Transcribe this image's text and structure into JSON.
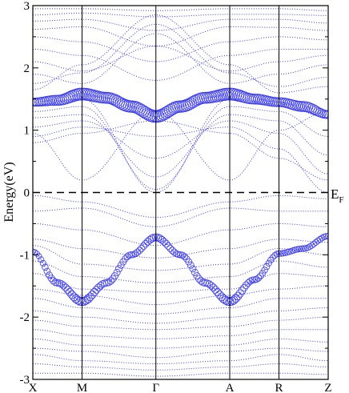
{
  "chart_data": {
    "type": "line",
    "title": "",
    "xlabel": "",
    "ylabel": "Energy(eV)",
    "ylim": [
      -3,
      3
    ],
    "xlim": [
      0,
      6
    ],
    "y_ticks": [
      -3,
      -2,
      -1,
      0,
      1,
      2,
      3
    ],
    "y_tick_labels": [
      "-3",
      "-2",
      "-1",
      "0",
      "1",
      "2",
      "3"
    ],
    "k_points": [
      {
        "label": "X",
        "x": 0
      },
      {
        "label": "M",
        "x": 1
      },
      {
        "label": "Γ",
        "x": 2.5
      },
      {
        "label": "A",
        "x": 4
      },
      {
        "label": "R",
        "x": 5
      },
      {
        "label": "Z",
        "x": 6
      }
    ],
    "fermi_level": {
      "energy": 0,
      "label": "E",
      "subscript": "F"
    },
    "colors": {
      "bands": "#3a3aee",
      "fermi": "#000000",
      "frame": "#000000"
    },
    "highlighted_bands": [
      {
        "name": "",
        "x": [
          0,
          0.5,
          1,
          1.5,
          2,
          2.5,
          3,
          3.5,
          4,
          4.5,
          5,
          5.5,
          6
        ],
        "y": [
          1.45,
          1.48,
          1.58,
          1.52,
          1.38,
          1.22,
          1.38,
          1.52,
          1.58,
          1.5,
          1.45,
          1.38,
          1.25
        ],
        "weight": [
          0.6,
          0.8,
          1.0,
          0.9,
          0.95,
          1.0,
          0.95,
          0.9,
          1.0,
          0.8,
          0.7,
          0.8,
          0.6
        ]
      },
      {
        "name": "",
        "x": [
          0,
          0.5,
          1,
          1.5,
          2,
          2.5,
          3,
          3.5,
          4,
          4.5,
          5,
          5.5,
          6
        ],
        "y": [
          -0.95,
          -1.45,
          -1.75,
          -1.45,
          -1.0,
          -0.72,
          -1.0,
          -1.45,
          -1.75,
          -1.4,
          -0.98,
          -0.9,
          -0.7
        ],
        "weight": [
          0.3,
          0.45,
          0.6,
          0.45,
          0.4,
          0.5,
          0.4,
          0.45,
          0.6,
          0.4,
          0.35,
          0.35,
          0.35
        ]
      }
    ],
    "bands": [
      {
        "x": [
          0,
          1,
          2.5,
          4,
          5,
          6
        ],
        "y": [
          2.95,
          2.95,
          2.92,
          2.95,
          2.95,
          2.92
        ]
      },
      {
        "x": [
          0,
          1,
          2.5,
          4,
          5,
          6
        ],
        "y": [
          2.85,
          2.88,
          2.82,
          2.86,
          2.86,
          2.84
        ]
      },
      {
        "x": [
          0,
          1,
          2.5,
          4,
          5,
          6
        ],
        "y": [
          2.75,
          2.78,
          2.6,
          2.78,
          2.78,
          2.72
        ]
      },
      {
        "x": [
          0,
          1,
          2.5,
          4,
          5,
          6
        ],
        "y": [
          2.62,
          2.66,
          2.35,
          2.66,
          2.65,
          2.6
        ]
      },
      {
        "x": [
          0,
          1,
          2.5,
          4,
          5,
          6
        ],
        "y": [
          2.5,
          2.42,
          2.1,
          2.42,
          2.5,
          2.45
        ]
      },
      {
        "x": [
          0,
          1,
          2.5,
          4,
          5,
          6
        ],
        "y": [
          2.3,
          2.2,
          1.8,
          2.2,
          2.3,
          2.3
        ]
      },
      {
        "x": [
          0,
          1,
          2.5,
          4,
          5,
          6
        ],
        "y": [
          2.1,
          1.95,
          2.35,
          1.95,
          2.1,
          2.2
        ]
      },
      {
        "x": [
          0,
          1,
          2.5,
          4,
          5,
          6
        ],
        "y": [
          1.9,
          1.75,
          2.55,
          1.75,
          1.9,
          2.05
        ]
      },
      {
        "x": [
          0,
          1,
          2.5,
          4,
          5,
          6
        ],
        "y": [
          1.75,
          1.92,
          2.7,
          1.92,
          1.7,
          1.85
        ]
      },
      {
        "x": [
          0,
          1,
          2.5,
          4,
          5,
          6
        ],
        "y": [
          1.65,
          2.05,
          2.85,
          2.05,
          1.6,
          1.7
        ]
      },
      {
        "x": [
          0,
          1,
          2.5,
          4,
          5,
          6
        ],
        "y": [
          1.4,
          1.5,
          0.0,
          1.5,
          1.42,
          1.2
        ]
      },
      {
        "x": [
          0,
          1,
          2.5,
          4,
          5,
          6
        ],
        "y": [
          1.3,
          1.38,
          0.05,
          1.38,
          1.3,
          0.9
        ]
      },
      {
        "x": [
          0,
          1,
          2.5,
          4,
          5,
          6
        ],
        "y": [
          1.2,
          1.25,
          0.25,
          1.25,
          1.15,
          0.6
        ]
      },
      {
        "x": [
          0,
          1,
          2.5,
          4,
          5,
          6
        ],
        "y": [
          1.05,
          1.15,
          0.55,
          1.15,
          0.95,
          0.3
        ]
      },
      {
        "x": [
          0,
          1,
          2.5,
          4,
          5,
          6
        ],
        "y": [
          0.9,
          1.05,
          0.9,
          1.05,
          0.7,
          0.0
        ]
      },
      {
        "x": [
          0,
          1,
          2.5,
          4,
          5,
          6
        ],
        "y": [
          0.8,
          0.95,
          1.15,
          0.95,
          0.55,
          0.2
        ]
      },
      {
        "x": [
          0,
          1,
          2.5,
          4,
          5,
          6
        ],
        "y": [
          0.95,
          0.2,
          1.3,
          0.2,
          1.0,
          1.3
        ]
      },
      {
        "x": [
          0,
          1,
          2.5,
          4,
          5,
          6
        ],
        "y": [
          -0.05,
          -0.15,
          -0.4,
          -0.15,
          -0.05,
          -0.1
        ]
      },
      {
        "x": [
          0,
          1,
          2.5,
          4,
          5,
          6
        ],
        "y": [
          -0.3,
          -0.25,
          -0.55,
          -0.25,
          -0.3,
          -0.3
        ]
      },
      {
        "x": [
          0,
          1,
          2.5,
          4,
          5,
          6
        ],
        "y": [
          -0.5,
          -0.6,
          -0.85,
          -0.6,
          -0.5,
          -0.55
        ]
      },
      {
        "x": [
          0,
          1,
          2.5,
          4,
          5,
          6
        ],
        "y": [
          -0.75,
          -0.9,
          -1.05,
          -0.9,
          -0.75,
          -0.8
        ]
      },
      {
        "x": [
          0,
          1,
          2.5,
          4,
          5,
          6
        ],
        "y": [
          -0.85,
          -1.15,
          -1.25,
          -1.15,
          -0.9,
          -1.0
        ]
      },
      {
        "x": [
          0,
          1,
          2.5,
          4,
          5,
          6
        ],
        "y": [
          -1.1,
          -1.35,
          -1.45,
          -1.35,
          -1.1,
          -1.2
        ]
      },
      {
        "x": [
          0,
          1,
          2.5,
          4,
          5,
          6
        ],
        "y": [
          -1.3,
          -1.55,
          -1.6,
          -1.55,
          -1.3,
          -1.35
        ]
      },
      {
        "x": [
          0,
          1,
          2.5,
          4,
          5,
          6
        ],
        "y": [
          -1.55,
          -1.65,
          -1.8,
          -1.65,
          -1.55,
          -1.5
        ]
      },
      {
        "x": [
          0,
          1,
          2.5,
          4,
          5,
          6
        ],
        "y": [
          -1.7,
          -1.85,
          -1.95,
          -1.85,
          -1.7,
          -1.7
        ]
      },
      {
        "x": [
          0,
          1,
          2.5,
          4,
          5,
          6
        ],
        "y": [
          -1.9,
          -2.0,
          -2.1,
          -2.0,
          -1.9,
          -1.85
        ]
      },
      {
        "x": [
          0,
          1,
          2.5,
          4,
          5,
          6
        ],
        "y": [
          -2.05,
          -2.15,
          -2.2,
          -2.15,
          -2.05,
          -2.0
        ]
      },
      {
        "x": [
          0,
          1,
          2.5,
          4,
          5,
          6
        ],
        "y": [
          -2.2,
          -2.3,
          -2.35,
          -2.3,
          -2.2,
          -2.2
        ]
      },
      {
        "x": [
          0,
          1,
          2.5,
          4,
          5,
          6
        ],
        "y": [
          -2.35,
          -2.45,
          -2.5,
          -2.45,
          -2.35,
          -2.4
        ]
      },
      {
        "x": [
          0,
          1,
          2.5,
          4,
          5,
          6
        ],
        "y": [
          -2.5,
          -2.55,
          -2.65,
          -2.55,
          -2.5,
          -2.55
        ]
      },
      {
        "x": [
          0,
          1,
          2.5,
          4,
          5,
          6
        ],
        "y": [
          -2.6,
          -2.7,
          -2.75,
          -2.7,
          -2.6,
          -2.7
        ]
      },
      {
        "x": [
          0,
          1,
          2.5,
          4,
          5,
          6
        ],
        "y": [
          -2.75,
          -2.8,
          -2.85,
          -2.8,
          -2.75,
          -2.8
        ]
      },
      {
        "x": [
          0,
          1,
          2.5,
          4,
          5,
          6
        ],
        "y": [
          -2.9,
          -2.9,
          -2.95,
          -2.9,
          -2.9,
          -2.92
        ]
      }
    ]
  }
}
